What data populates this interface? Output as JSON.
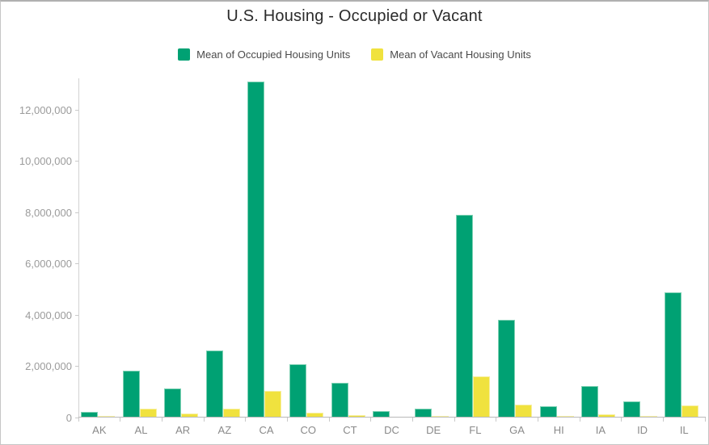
{
  "chart_data": {
    "type": "bar",
    "title": "U.S. Housing - Occupied or Vacant",
    "categories": [
      "AK",
      "AL",
      "AR",
      "AZ",
      "CA",
      "CO",
      "CT",
      "DC",
      "DE",
      "FL",
      "GA",
      "HI",
      "IA",
      "ID",
      "IL"
    ],
    "series": [
      {
        "name": "Mean of Occupied Housing Units",
        "color": "#00a173",
        "border_color": "#7fd1b4",
        "values": [
          230000,
          1840000,
          1130000,
          2610000,
          13100000,
          2070000,
          1360000,
          250000,
          340000,
          7900000,
          3800000,
          430000,
          1230000,
          620000,
          4870000
        ]
      },
      {
        "name": "Mean of Vacant Housing Units",
        "color": "#f0e23e",
        "border_color": "#f7efa1",
        "values": [
          50000,
          340000,
          160000,
          350000,
          1050000,
          190000,
          90000,
          30000,
          60000,
          1600000,
          490000,
          50000,
          140000,
          70000,
          460000
        ]
      }
    ],
    "xlabel": "",
    "ylabel": "",
    "ylim": [
      0,
      13217000
    ],
    "y_ticks": [
      {
        "value": 0,
        "label": "0"
      },
      {
        "value": 2000000,
        "label": "2,000,000"
      },
      {
        "value": 4000000,
        "label": "4,000,000"
      },
      {
        "value": 6000000,
        "label": "6,000,000"
      },
      {
        "value": 8000000,
        "label": "8,000,000"
      },
      {
        "value": 10000000,
        "label": "10,000,000"
      },
      {
        "value": 12000000,
        "label": "12,000,000"
      }
    ],
    "grid": "off",
    "legend_position": "top"
  }
}
